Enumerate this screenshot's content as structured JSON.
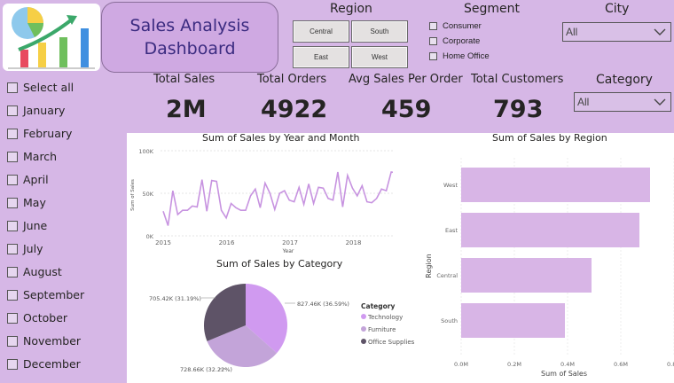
{
  "header": {
    "title": "Sales Analysis\nDashboard"
  },
  "region_slicer": {
    "title": "Region",
    "buttons": [
      "Central",
      "South",
      "East",
      "West"
    ]
  },
  "segment_slicer": {
    "title": "Segment",
    "items": [
      "Consumer",
      "Corporate",
      "Home Office"
    ]
  },
  "city_slicer": {
    "title": "City",
    "selected": "All"
  },
  "category_slicer": {
    "title": "Category",
    "selected": "All"
  },
  "kpis": [
    {
      "label": "Total Sales",
      "value": "2M"
    },
    {
      "label": "Total Orders",
      "value": "4922"
    },
    {
      "label": "Avg Sales Per Order",
      "value": "459"
    },
    {
      "label": "Total Customers",
      "value": "793"
    }
  ],
  "month_slicer": {
    "items": [
      "Select all",
      "January",
      "February",
      "March",
      "April",
      "May",
      "June",
      "July",
      "August",
      "September",
      "October",
      "November",
      "December"
    ]
  },
  "colors": {
    "accent": "#c99be6",
    "panel": "#d6b7e6",
    "line": "#c793e0",
    "bar": "#d8b5e6",
    "pie_technology": "#d09af0",
    "pie_furniture": "#c3a4d9",
    "pie_office": "#5e5367"
  },
  "chart_data": [
    {
      "type": "line",
      "title": "Sum of Sales by Year and Month",
      "xlabel": "Year",
      "ylabel": "Sum of Sales",
      "x_ticks": [
        "2015",
        "2016",
        "2017",
        "2018"
      ],
      "y_ticks": [
        "0K",
        "50K",
        "100K"
      ],
      "ylim": [
        0,
        100000
      ],
      "values": [
        29000,
        12000,
        53000,
        25000,
        30000,
        30000,
        35000,
        34000,
        66000,
        29000,
        65000,
        64000,
        30000,
        21000,
        38000,
        33000,
        30000,
        30000,
        47000,
        55000,
        33000,
        62000,
        50000,
        31000,
        50000,
        53000,
        42000,
        40000,
        57000,
        37000,
        61000,
        38000,
        57000,
        56000,
        44000,
        42000,
        75000,
        34000,
        71000,
        56000,
        47000,
        59000,
        40000,
        39000,
        44000,
        55000,
        53000,
        75000,
        74000,
        67000,
        89000,
        57000
      ]
    },
    {
      "type": "bar",
      "title": "Sum of Sales by Region",
      "xlabel": "Sum of Sales",
      "ylabel": "Region",
      "categories": [
        "West",
        "East",
        "Central",
        "South"
      ],
      "values": [
        710000,
        670000,
        490000,
        390000
      ],
      "x_ticks": [
        "0.0M",
        "0.2M",
        "0.4M",
        "0.6M",
        "0.8M"
      ],
      "xlim": [
        0,
        800000
      ]
    },
    {
      "type": "pie",
      "title": "Sum of Sales by Category",
      "legend_title": "Category",
      "slices": [
        {
          "name": "Technology",
          "value": 827460,
          "label": "827.46K (36.59%)"
        },
        {
          "name": "Furniture",
          "value": 728660,
          "label": "728.66K (32.22%)"
        },
        {
          "name": "Office Supplies",
          "value": 705420,
          "label": "705.42K (31.19%)"
        }
      ]
    }
  ]
}
